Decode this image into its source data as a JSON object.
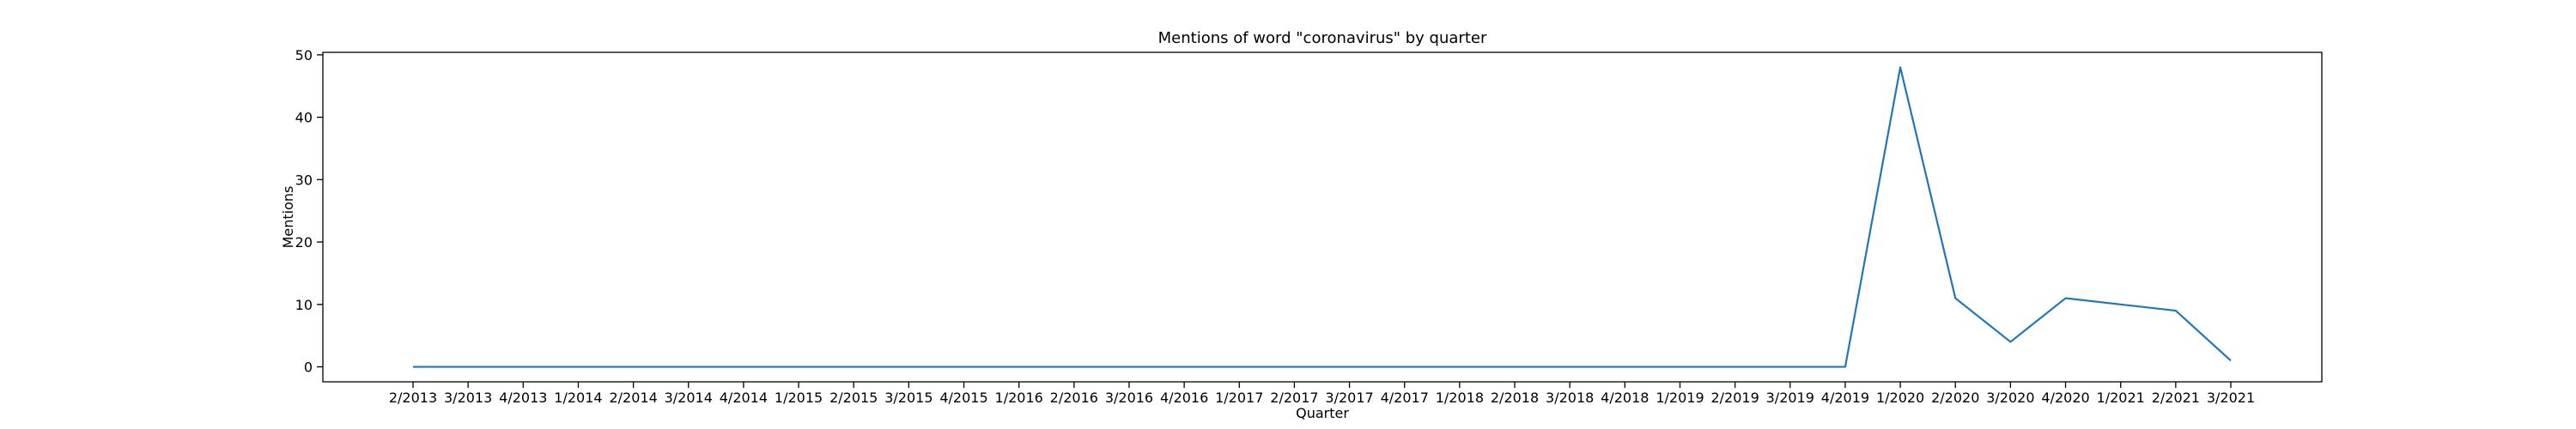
{
  "chart_data": {
    "type": "line",
    "title": "Mentions of word \"coronavirus\" by quarter",
    "xlabel": "Quarter",
    "ylabel": "Mentions",
    "categories": [
      "2/2013",
      "3/2013",
      "4/2013",
      "1/2014",
      "2/2014",
      "3/2014",
      "4/2014",
      "1/2015",
      "2/2015",
      "3/2015",
      "4/2015",
      "1/2016",
      "2/2016",
      "3/2016",
      "4/2016",
      "1/2017",
      "2/2017",
      "3/2017",
      "4/2017",
      "1/2018",
      "2/2018",
      "3/2018",
      "4/2018",
      "1/2019",
      "2/2019",
      "3/2019",
      "4/2019",
      "1/2020",
      "2/2020",
      "3/2020",
      "4/2020",
      "1/2021",
      "2/2021",
      "3/2021"
    ],
    "values": [
      0,
      0,
      0,
      0,
      0,
      0,
      0,
      0,
      0,
      0,
      0,
      0,
      0,
      0,
      0,
      0,
      0,
      0,
      0,
      0,
      0,
      0,
      0,
      0,
      0,
      0,
      0,
      48,
      11,
      4,
      11,
      10,
      9,
      1
    ],
    "ylim": [
      -2.4,
      50.4
    ],
    "yticks": [
      0,
      10,
      20,
      30,
      40,
      50
    ],
    "grid": false,
    "line_color": "#1f77b4"
  }
}
